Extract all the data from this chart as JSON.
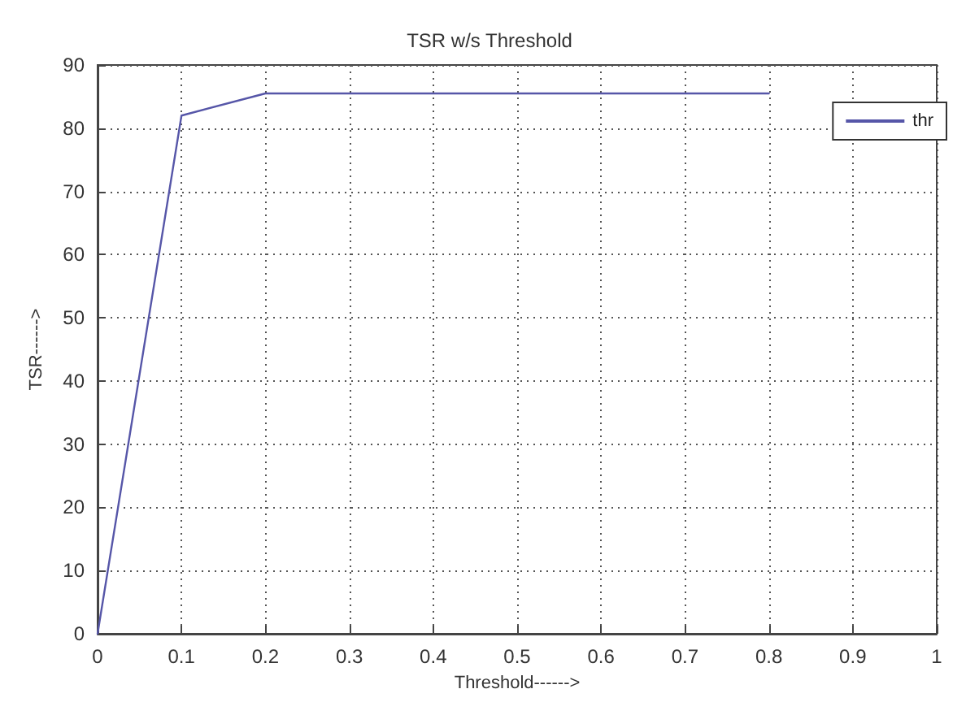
{
  "chart_data": {
    "type": "line",
    "title": "TSR w/s Threshold",
    "xlabel": "Threshold------>",
    "ylabel": "TSR------>",
    "x": [
      0,
      0.1,
      0.2,
      0.3,
      0.4,
      0.5,
      0.6,
      0.7,
      0.8
    ],
    "series": [
      {
        "name": "thr",
        "color": "#5656a8",
        "values": [
          0,
          82,
          85.5,
          85.5,
          85.5,
          85.5,
          85.5,
          85.5,
          85.5
        ]
      }
    ],
    "xlim": [
      0,
      1
    ],
    "xticks": [
      0,
      0.1,
      0.2,
      0.3,
      0.4,
      0.5,
      0.6,
      0.7,
      0.8,
      0.9,
      1
    ],
    "ylim": [
      0,
      90
    ],
    "yticks": [
      0,
      10,
      20,
      30,
      40,
      50,
      60,
      70,
      80,
      90
    ],
    "grid": true,
    "legend": "top right",
    "marker": "none",
    "line_style": "solid"
  }
}
